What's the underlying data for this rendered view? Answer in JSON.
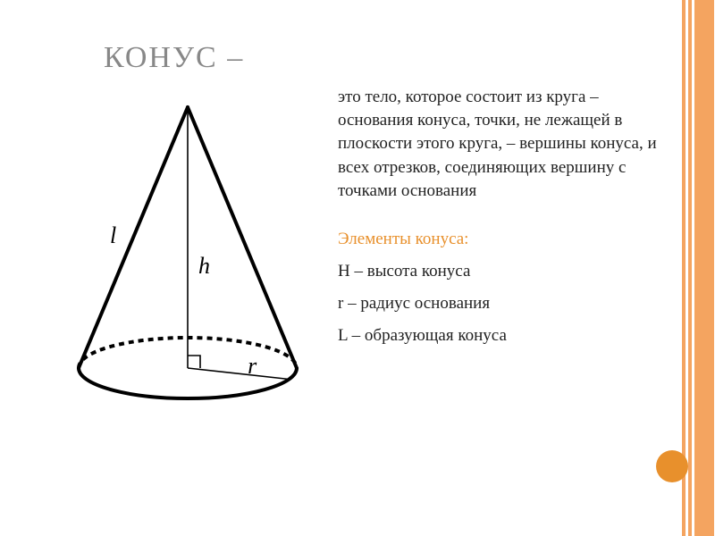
{
  "title": "КОНУС –",
  "definition": "это тело, которое состоит из круга – основания конуса, точки, не лежащей в плоскости этого круга, – вершины конуса, и всех отрезков, соединяющих вершину с точками основания",
  "elements_title": "Элементы конуса:",
  "elements": [
    "H – высота конуса",
    "r – радиус основания",
    "L – образующая конуса"
  ],
  "cone": {
    "slant_label": "l",
    "height_label": "h",
    "radius_label": "r",
    "stroke": "#000000",
    "stroke_width": 4,
    "thin_stroke_width": 1.6,
    "dash": "6,5",
    "bg": "#ffffff",
    "label_font": "italic 26px Georgia"
  },
  "palette": {
    "stripe_color": "#f4a460",
    "accent_circle": "#e8902c",
    "title_color": "#888888",
    "text_color": "#222222"
  }
}
